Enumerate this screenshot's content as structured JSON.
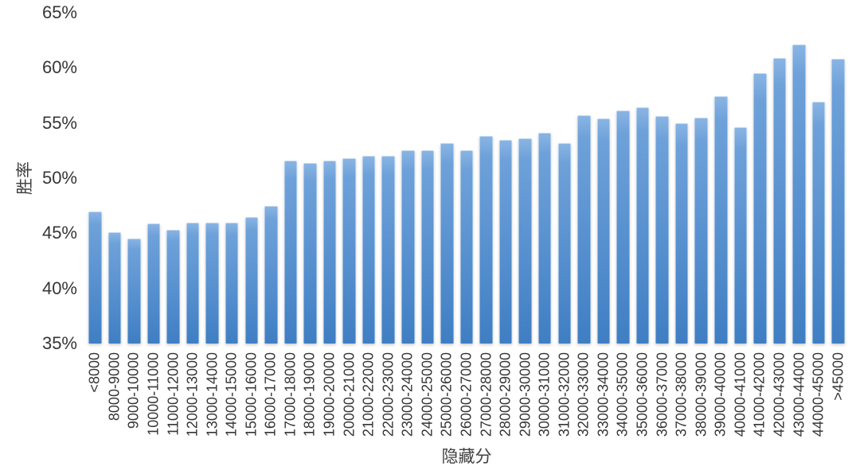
{
  "chart_data": {
    "type": "bar",
    "title": "",
    "xlabel": "隐藏分",
    "ylabel": "胜率",
    "categories": [
      "<8000",
      "8000-9000",
      "9000-10000",
      "10000-11000",
      "11000-12000",
      "12000-13000",
      "13000-14000",
      "14000-15000",
      "15000-16000",
      "16000-17000",
      "17000-18000",
      "18000-19000",
      "19000-20000",
      "20000-21000",
      "21000-22000",
      "22000-23000",
      "23000-24000",
      "24000-25000",
      "25000-26000",
      "26000-27000",
      "27000-28000",
      "28000-29000",
      "29000-30000",
      "30000-31000",
      "31000-32000",
      "32000-33000",
      "33000-34000",
      "34000-35000",
      "35000-36000",
      "36000-37000",
      "37000-38000",
      "38000-39000",
      "39000-40000",
      "40000-41000",
      "41000-42000",
      "42000-43000",
      "43000-44000",
      "44000-45000",
      ">45000"
    ],
    "values": [
      47.0,
      45.1,
      44.5,
      45.9,
      45.3,
      46.0,
      46.0,
      46.0,
      46.5,
      47.5,
      51.6,
      51.4,
      51.6,
      51.8,
      52.0,
      52.0,
      52.5,
      52.5,
      53.2,
      52.5,
      53.8,
      53.5,
      53.6,
      54.1,
      53.2,
      55.7,
      55.4,
      56.1,
      56.4,
      55.6,
      55.0,
      55.5,
      57.4,
      54.6,
      59.5,
      60.9,
      62.1,
      56.9,
      60.8
    ],
    "unit": "%",
    "ylim": [
      35,
      65
    ],
    "yticks": [
      {
        "label": "65%",
        "value": 65
      },
      {
        "label": "60%",
        "value": 60
      },
      {
        "label": "55%",
        "value": 55
      },
      {
        "label": "50%",
        "value": 50
      },
      {
        "label": "45%",
        "value": 45
      },
      {
        "label": "40%",
        "value": 40
      },
      {
        "label": "35%",
        "value": 35
      }
    ],
    "grid": false,
    "legend": "none",
    "colors": {
      "bar_top": "#8ab5e4",
      "bar_mid": "#5b93d1",
      "bar_bottom": "#3f7ec3",
      "text": "#363636",
      "background": "#ffffff"
    }
  }
}
